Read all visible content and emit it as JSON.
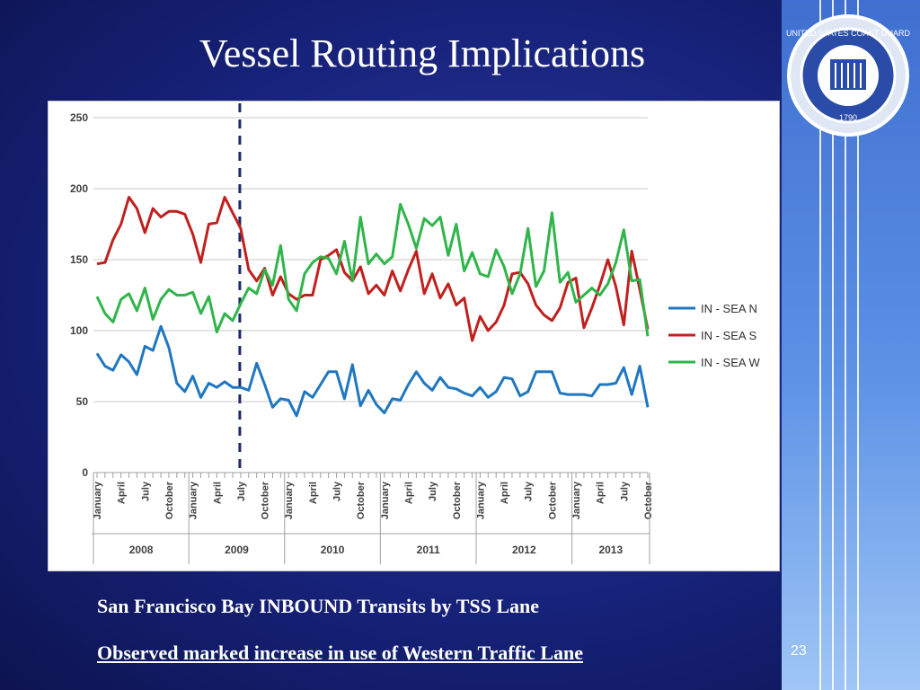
{
  "slide": {
    "title": "Vessel Routing Implications",
    "caption_1": "San Francisco Bay INBOUND Transits by TSS Lane",
    "caption_2": "Observed marked increase in use of Western Traffic Lane",
    "slide_number": "23",
    "seal_text": "UNITED STATES COAST GUARD 1790"
  },
  "colors": {
    "background": "#17227a",
    "sea_n": "#1f77c0",
    "sea_s": "#c0201e",
    "sea_w": "#2fb54a",
    "marker_line": "#1a2a6a"
  },
  "chart_data": {
    "type": "line",
    "ylim": [
      0,
      250
    ],
    "yticks": [
      0,
      50,
      100,
      150,
      200,
      250
    ],
    "grid": true,
    "legend_position": "right",
    "x_month_labels": [
      "January",
      "April",
      "July",
      "October"
    ],
    "years": [
      "2008",
      "2009",
      "2010",
      "2011",
      "2012",
      "2013"
    ],
    "x_start": "2008-01",
    "vertical_marker": "2009-07",
    "series": [
      {
        "name": "IN - SEA N",
        "color": "#1f77c0",
        "values": [
          84,
          75,
          72,
          83,
          78,
          69,
          89,
          86,
          103,
          88,
          63,
          57,
          68,
          53,
          63,
          60,
          64,
          60,
          60,
          58,
          77,
          62,
          46,
          52,
          51,
          40,
          57,
          53,
          62,
          71,
          71,
          52,
          76,
          47,
          58,
          48,
          42,
          52,
          51,
          62,
          71,
          63,
          58,
          67,
          60,
          59,
          56,
          54,
          60,
          53,
          57,
          67,
          66,
          54,
          57,
          71,
          71,
          71,
          56,
          55,
          55,
          55,
          54,
          62,
          62,
          63,
          74,
          55,
          75,
          46
        ]
      },
      {
        "name": "IN - SEA S",
        "color": "#c0201e",
        "values": [
          147,
          148,
          164,
          175,
          194,
          186,
          169,
          186,
          180,
          184,
          184,
          182,
          168,
          148,
          175,
          176,
          194,
          183,
          172,
          143,
          135,
          144,
          125,
          138,
          126,
          122,
          125,
          125,
          150,
          153,
          157,
          141,
          135,
          145,
          126,
          132,
          125,
          142,
          128,
          143,
          156,
          126,
          140,
          123,
          133,
          118,
          123,
          93,
          110,
          100,
          106,
          118,
          140,
          141,
          133,
          118,
          111,
          107,
          116,
          134,
          137,
          102,
          116,
          132,
          150,
          131,
          104,
          156,
          129,
          101
        ]
      },
      {
        "name": "IN - SEA W",
        "color": "#2fb54a",
        "values": [
          124,
          112,
          106,
          122,
          126,
          114,
          130,
          108,
          122,
          129,
          125,
          125,
          127,
          112,
          124,
          99,
          112,
          107,
          119,
          130,
          126,
          143,
          132,
          160,
          122,
          114,
          140,
          148,
          152,
          151,
          140,
          163,
          135,
          180,
          147,
          154,
          147,
          152,
          189,
          175,
          158,
          179,
          174,
          180,
          153,
          175,
          142,
          155,
          140,
          138,
          157,
          145,
          126,
          140,
          172,
          131,
          142,
          183,
          134,
          141,
          120,
          125,
          130,
          125,
          133,
          148,
          171,
          135,
          136,
          96
        ]
      }
    ]
  }
}
